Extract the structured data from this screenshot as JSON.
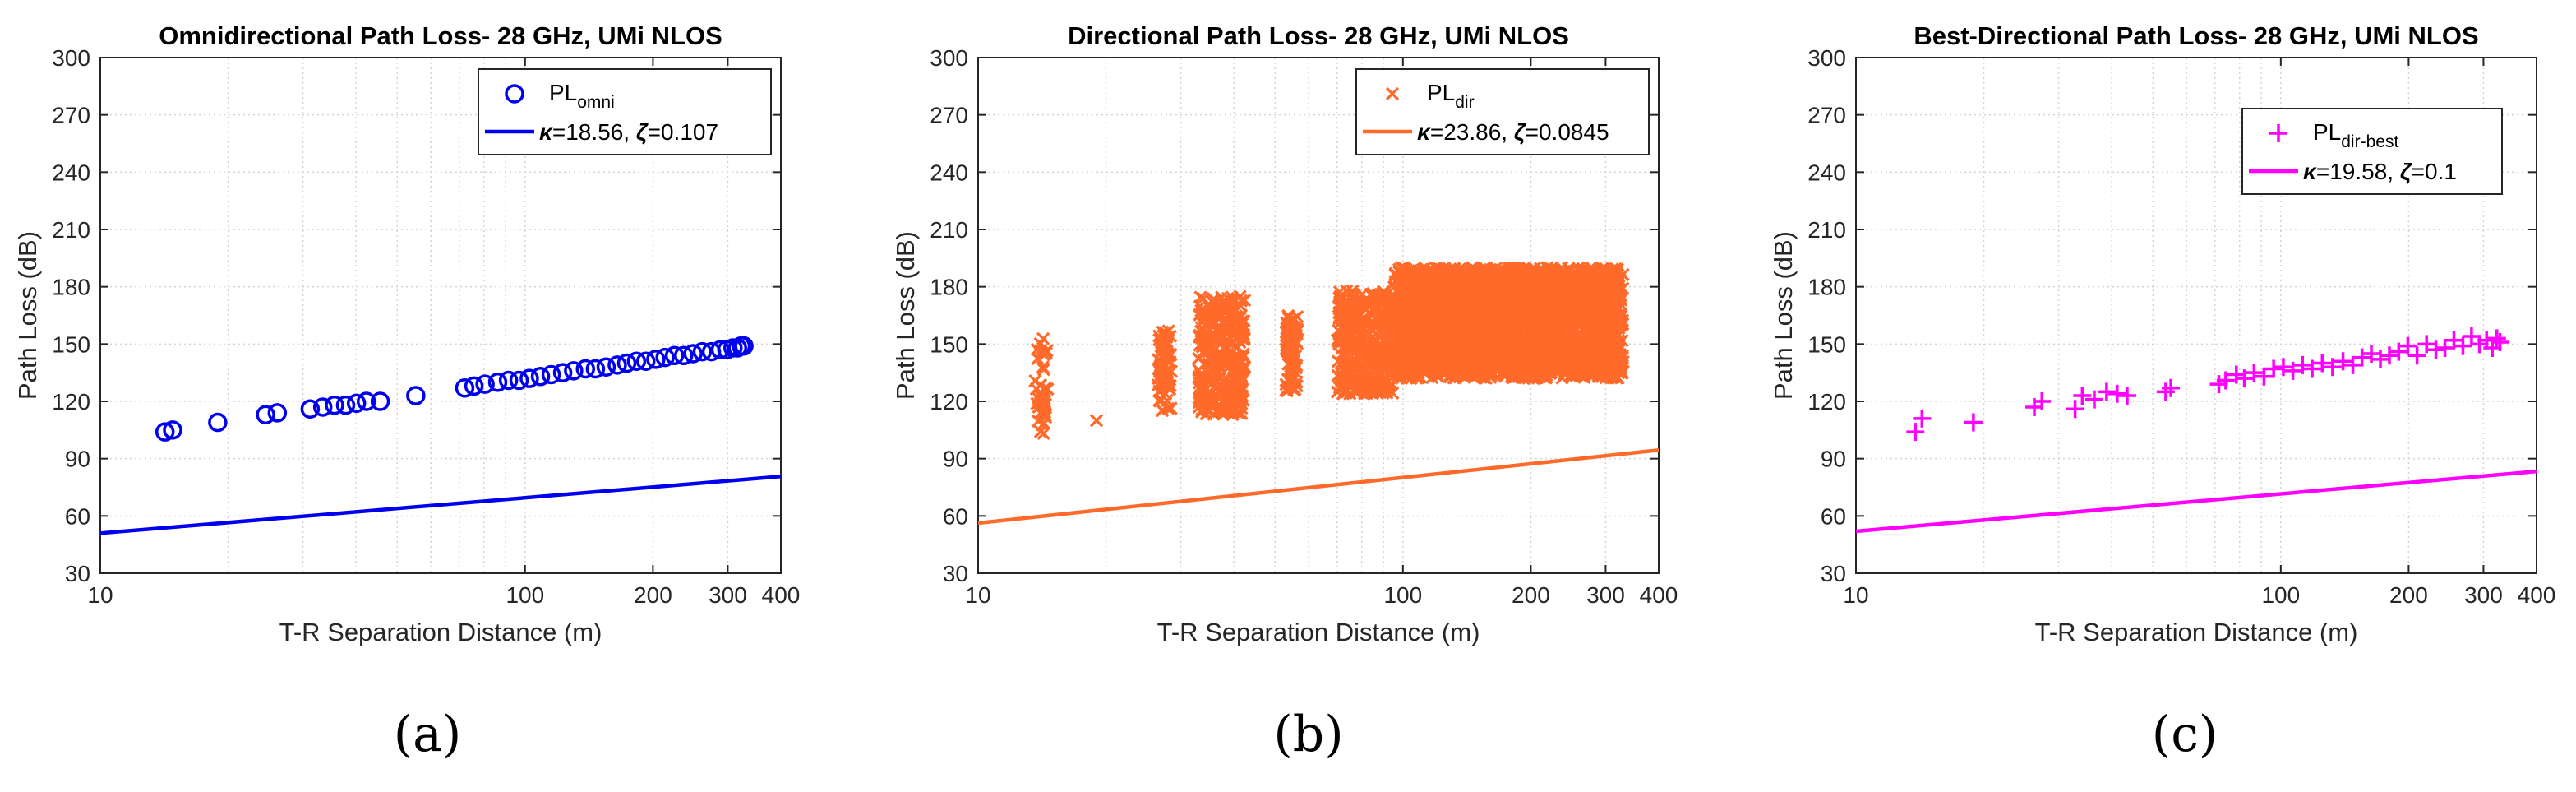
{
  "figure": {
    "panels": [
      "(a)",
      "(b)",
      "(c)"
    ]
  },
  "chart_data": [
    {
      "type": "scatter",
      "title": "Omnidirectional Path Loss- 28 GHz, UMi NLOS",
      "xlabel": "T-R Separation Distance (m)",
      "ylabel": "Path Loss (dB)",
      "xscale": "log",
      "xlim": [
        10,
        400
      ],
      "ylim": [
        30,
        300
      ],
      "xticks": [
        10,
        100,
        200,
        300,
        400
      ],
      "xtick_labels": [
        "10",
        "100",
        "200",
        "300",
        "400"
      ],
      "yticks": [
        30,
        60,
        90,
        120,
        150,
        180,
        210,
        240,
        270,
        300
      ],
      "grid": true,
      "legend_position": "top-right",
      "color": "#0000ee",
      "marker": "circle",
      "legend": {
        "series_base": "PL",
        "series_sub": "omni",
        "fit_kappa_label": "κ",
        "fit_kappa_value": "=18.56, ",
        "fit_zeta_label": "ζ",
        "fit_zeta_value": "=0.107"
      },
      "fit": {
        "kappa": 18.56,
        "zeta": 0.107
      },
      "x": [
        14.2,
        14.8,
        18.9,
        24.5,
        26.1,
        31.2,
        33.4,
        35.6,
        37.8,
        40.1,
        42.3,
        45.6,
        55.3,
        72.1,
        75.8,
        80.5,
        86.2,
        91.4,
        96.8,
        102.3,
        108.7,
        115.2,
        122.6,
        130.1,
        138.7,
        146.4,
        155.2,
        164.8,
        173.5,
        182.9,
        192.4,
        203.1,
        213.6,
        224.8,
        236.2,
        248.5,
        261.3,
        274.6,
        288.2,
        298.5,
        308.6,
        316.2,
        322.4,
        327.5
      ],
      "y": [
        104,
        105,
        109,
        113,
        114,
        116,
        117,
        118,
        118,
        119,
        120,
        120,
        123,
        127,
        128,
        129,
        130,
        131,
        131,
        132,
        133,
        134,
        135,
        136,
        137,
        137,
        138,
        139,
        140,
        141,
        141,
        142,
        143,
        144,
        144,
        145,
        146,
        146,
        147,
        147,
        148,
        148,
        149,
        149
      ]
    },
    {
      "type": "scatter",
      "title": "Directional Path Loss- 28 GHz, UMi NLOS",
      "xlabel": "T-R Separation Distance (m)",
      "ylabel": "Path Loss (dB)",
      "xscale": "log",
      "xlim": [
        10,
        400
      ],
      "ylim": [
        30,
        300
      ],
      "xticks": [
        10,
        100,
        200,
        300,
        400
      ],
      "xtick_labels": [
        "10",
        "100",
        "200",
        "300",
        "400"
      ],
      "yticks": [
        30,
        60,
        90,
        120,
        150,
        180,
        210,
        240,
        270,
        300
      ],
      "grid": true,
      "legend_position": "top-right",
      "color": "#ff6a2a",
      "marker": "x",
      "legend": {
        "series_base": "PL",
        "series_sub": "dir",
        "fit_kappa_label": "κ",
        "fit_kappa_value": "=23.86, ",
        "fit_zeta_label": "ζ",
        "fit_zeta_value": "=0.0845"
      },
      "fit": {
        "kappa": 23.86,
        "zeta": 0.0845
      },
      "clusters": [
        {
          "x": [
            13.6,
            14.6
          ],
          "ymin": 103,
          "ymax": 153,
          "count": 40
        },
        {
          "x": [
            18.8,
            19.2
          ],
          "ymin": 109,
          "ymax": 110,
          "count": 1
        },
        {
          "x": [
            26.5,
            28.5
          ],
          "ymin": 115,
          "ymax": 157,
          "count": 70
        },
        {
          "x": [
            33.0,
            42.5
          ],
          "ymin": 113,
          "ymax": 175,
          "count": 320
        },
        {
          "x": [
            53.0,
            56.5
          ],
          "ymin": 124,
          "ymax": 166,
          "count": 70
        },
        {
          "x": [
            70.0,
            95.0
          ],
          "ymin": 124,
          "ymax": 178,
          "count": 380
        },
        {
          "x": [
            95.0,
            330.0
          ],
          "ymin": 132,
          "ymax": 190,
          "count": 2600
        }
      ]
    },
    {
      "type": "scatter",
      "title": "Best-Directional Path Loss- 28 GHz, UMi NLOS",
      "xlabel": "T-R Separation Distance (m)",
      "ylabel": "Path Loss (dB)",
      "xscale": "log",
      "xlim": [
        10,
        400
      ],
      "ylim": [
        30,
        300
      ],
      "xticks": [
        10,
        100,
        200,
        300,
        400
      ],
      "xtick_labels": [
        "10",
        "100",
        "200",
        "300",
        "400"
      ],
      "yticks": [
        30,
        60,
        90,
        120,
        150,
        180,
        210,
        240,
        270,
        300
      ],
      "grid": true,
      "legend_position": "top-right",
      "color": "#ff00ff",
      "marker": "plus",
      "legend": {
        "series_base": "PL",
        "series_sub": "dir-best",
        "fit_kappa_label": "κ",
        "fit_kappa_value": "=19.58, ",
        "fit_zeta_label": "ζ",
        "fit_zeta_value": "=0.1"
      },
      "fit": {
        "kappa": 19.58,
        "zeta": 0.1
      },
      "x": [
        13.8,
        14.3,
        18.9,
        26.3,
        27.4,
        32.8,
        34.1,
        36.4,
        38.9,
        41.2,
        43.5,
        53.6,
        55.1,
        71.5,
        74.2,
        78.6,
        82.1,
        86.5,
        91.3,
        96.2,
        101.4,
        106.8,
        112.5,
        118.6,
        125.2,
        132.4,
        140.1,
        147.8,
        155.3,
        163.4,
        171.6,
        180.2,
        189.5,
        199.1,
        209.3,
        220.4,
        231.8,
        243.5,
        255.6,
        268.4,
        281.2,
        293.6,
        305.1,
        314.8,
        322.6,
        328.2
      ],
      "y": [
        104,
        111,
        109,
        117,
        120,
        116,
        123,
        121,
        125,
        124,
        123,
        125,
        127,
        129,
        131,
        134,
        132,
        135,
        133,
        137,
        138,
        136,
        139,
        137,
        140,
        138,
        141,
        139,
        143,
        145,
        142,
        144,
        146,
        149,
        144,
        150,
        147,
        148,
        152,
        149,
        154,
        150,
        152,
        148,
        153,
        151
      ]
    }
  ]
}
